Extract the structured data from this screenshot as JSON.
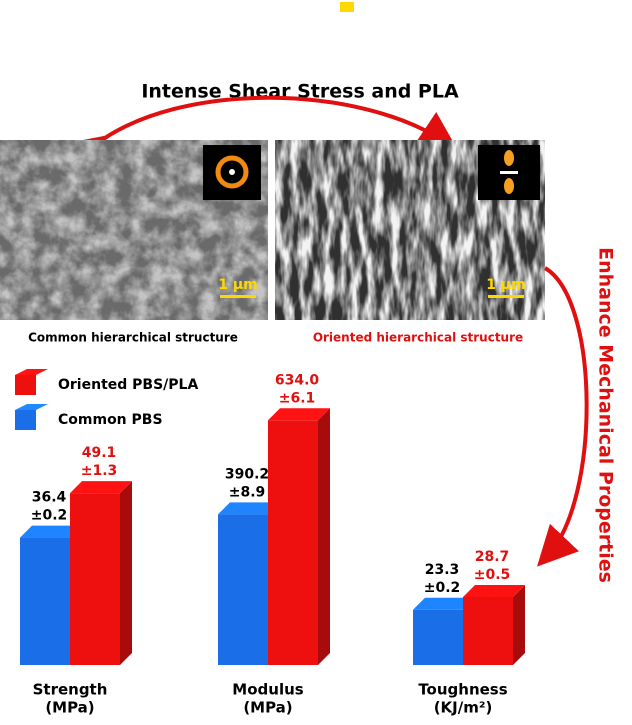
{
  "header": {
    "title": "Intense Shear Stress and PLA",
    "side_label": "Enhance Mechanical Properties"
  },
  "images": [
    {
      "caption": "Common hierarchical structure",
      "scale_bar": "1 μm"
    },
    {
      "caption": "Oriented hierarchical structure",
      "scale_bar": "1 μm"
    }
  ],
  "chart_data": {
    "type": "bar3d",
    "categories": [
      "Strength",
      "Modulus",
      "Toughness"
    ],
    "units": [
      "(MPa)",
      "(MPa)",
      "(KJ/m²)"
    ],
    "series": [
      {
        "name": "Common PBS",
        "color": "#1a6ee8",
        "values": [
          36.4,
          390.2,
          23.3
        ],
        "value_labels": [
          "36.4",
          "390.2",
          "23.3"
        ],
        "error_labels": [
          "±0.2",
          "±8.9",
          "±0.2"
        ]
      },
      {
        "name": "Oriented PBS/PLA",
        "color": "#ee0f0f",
        "values": [
          49.1,
          634.0,
          28.7
        ],
        "value_labels": [
          "49.1",
          "634.0",
          "28.7"
        ],
        "error_labels": [
          "±1.3",
          "±6.1",
          "±0.5"
        ]
      }
    ]
  }
}
